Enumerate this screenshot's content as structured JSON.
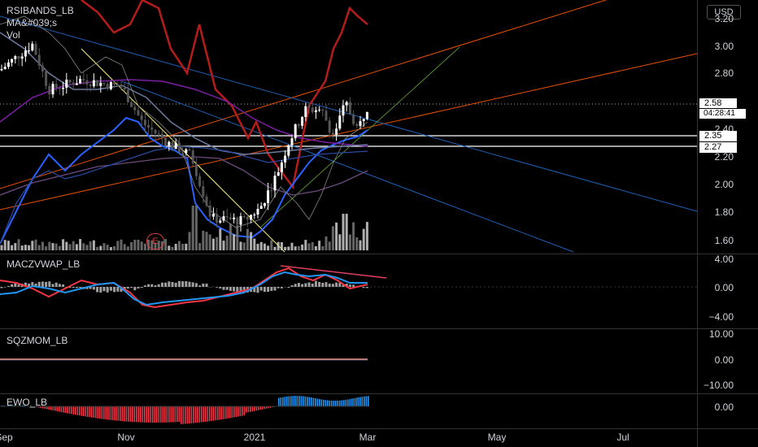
{
  "currency_label": "USD",
  "indicator_labels": {
    "main1": "RSIBANDS_LB",
    "main2": "MA&#039;s",
    "main3": "Vol",
    "pane1": "MACZVWAP_LB",
    "pane2": "SQZMOM_LB",
    "pane3": "EWO_LB"
  },
  "earnings_marker": "E",
  "price_axis_ticks": [
    "3.20",
    "3.00",
    "2.80",
    "2.40",
    "2.20",
    "2.00",
    "1.80",
    "1.60"
  ],
  "price_labels": {
    "last": "2.58",
    "countdown": "04:28:41",
    "level1": "2.35",
    "level2": "2.27"
  },
  "pane1_ticks": [
    "4.00",
    "0.00",
    "−4.00"
  ],
  "pane2_ticks": [
    "10.00",
    "0.00",
    "−10.00"
  ],
  "pane3_ticks": [
    "0.00"
  ],
  "time_axis": [
    "Sep",
    "Nov",
    "2021",
    "Mar",
    "May",
    "Jul"
  ],
  "colors": {
    "background": "#000000",
    "up_candle": "#ffffff",
    "down_candle": "#555555",
    "rsi_band": "#b71c1c",
    "ma_blue": "#2962ff",
    "ma_purple": "#7b1fa2",
    "trend_orange": "#e65100",
    "trend_blue": "#1e5fb4",
    "trend_yellow": "#fff176",
    "ewo_up": "#2196f3",
    "ewo_down": "#f23645"
  },
  "chart_data": {
    "type": "candlestick",
    "symbol_context": "price chart with overlays",
    "x_axis": [
      "Sep",
      "Nov",
      "2021",
      "Mar",
      "May",
      "Jul"
    ],
    "y_range": [
      1.55,
      3.25
    ],
    "price_series_approx": [
      {
        "x": "Sep",
        "close": 2.95
      },
      {
        "x": "Oct",
        "close": 2.75
      },
      {
        "x": "Nov",
        "close": 2.55
      },
      {
        "x": "Dec",
        "close": 1.75
      },
      {
        "x": "2021",
        "close": 1.95
      },
      {
        "x": "Feb",
        "close": 2.55
      },
      {
        "x": "Mar",
        "close": 2.58
      }
    ],
    "horizontal_levels": [
      2.58,
      2.35,
      2.27
    ],
    "macd_range": [
      -4,
      4
    ],
    "sqz_range": [
      -10,
      10
    ]
  }
}
